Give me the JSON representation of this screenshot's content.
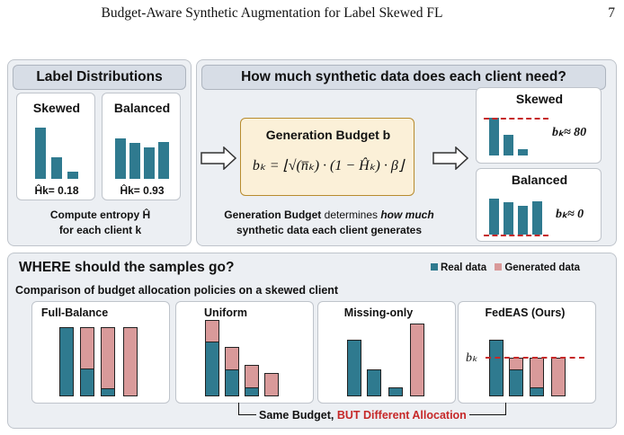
{
  "header": {
    "running_title": "Budget-Aware Synthetic Augmentation for Label Skewed FL",
    "page_number": "7"
  },
  "left_panel": {
    "title": "Label Distributions",
    "skewed_card": {
      "title": "Skewed",
      "entropy_label": "Ĥk= 0.18"
    },
    "balanced_card": {
      "title": "Balanced",
      "entropy_label": "Ĥk= 0.93"
    },
    "caption_line1": "Compute entropy Ĥ",
    "caption_line2": "for each client k"
  },
  "top_panel": {
    "title": "How much synthetic data does each client need?",
    "formula_title": "Generation Budget b",
    "formula": "bₖ = ⌊√(n̅ₖ) · (1 − Ĥₖ) · β⌋",
    "desc_line1_a": "Generation Budget ",
    "desc_line1_b": "determines ",
    "desc_line1_c": "how much",
    "desc_line2": "synthetic data each client generates",
    "skewed_result": {
      "title": "Skewed",
      "budget": "bₖ≈ 80"
    },
    "balanced_result": {
      "title": "Balanced",
      "budget": "bₖ≈ 0"
    }
  },
  "bottom_panel": {
    "title": "WHERE should the samples go?",
    "legend": {
      "real": "Real data",
      "generated": "Generated data"
    },
    "subtitle": "Comparison of budget allocation policies on a skewed client",
    "policies": [
      {
        "name": "Full-Balance"
      },
      {
        "name": "Uniform"
      },
      {
        "name": "Missing-only"
      },
      {
        "name": "FedEAS (Ours)",
        "budget_label": "bₖ"
      }
    ],
    "bracket_text_a": "Same Budget, ",
    "bracket_text_b": "BUT Different Allocation"
  },
  "colors": {
    "real": "#2f7a8f",
    "generated": "#d99a9a",
    "accent_red": "#c62828",
    "formula_bg": "#fbf0d8"
  }
}
